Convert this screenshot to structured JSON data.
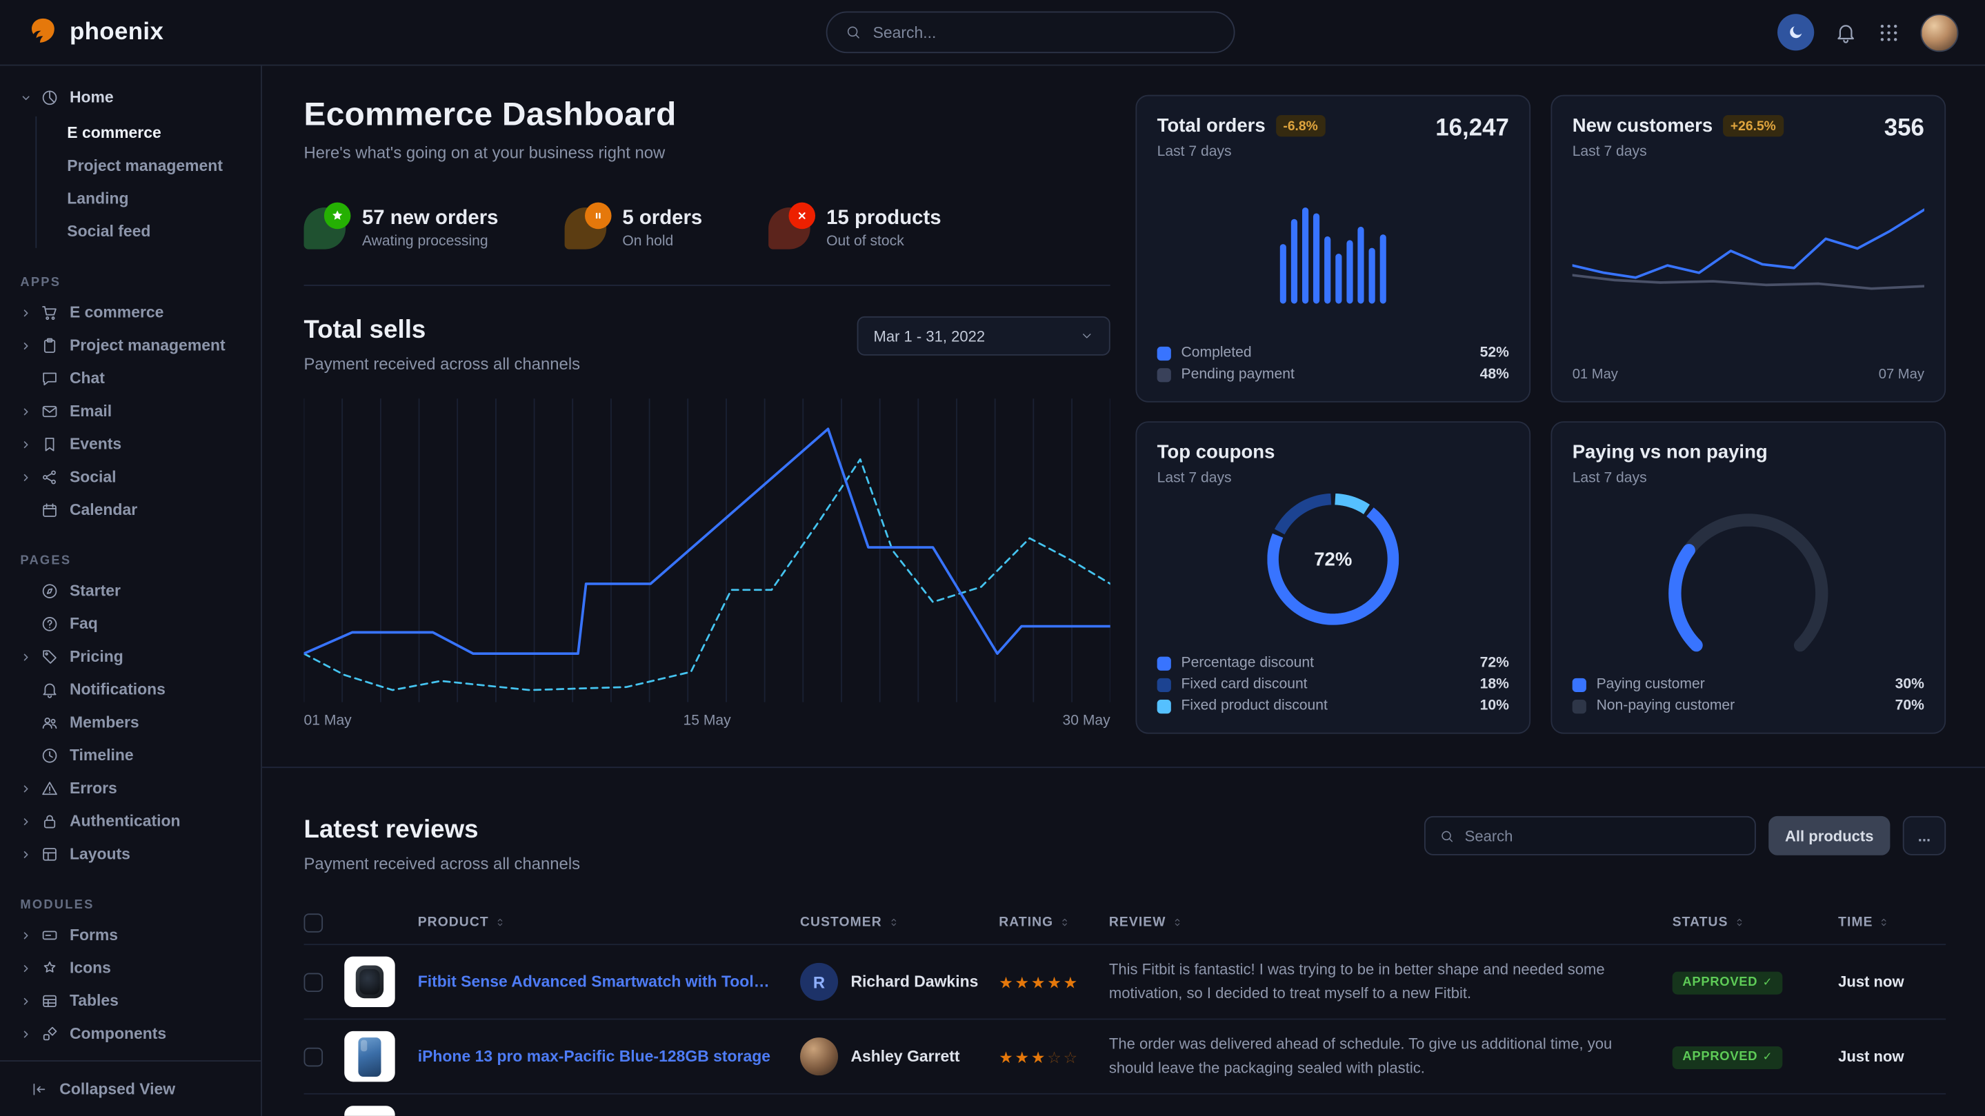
{
  "navbar": {
    "brand": "phoenix",
    "search_placeholder": "Search..."
  },
  "sidebar": {
    "home": {
      "label": "Home",
      "icon": "pie",
      "children": [
        {
          "label": "E commerce",
          "active": true
        },
        {
          "label": "Project management",
          "active": false
        },
        {
          "label": "Landing",
          "active": false
        },
        {
          "label": "Social feed",
          "active": false
        }
      ]
    },
    "sections": [
      {
        "label": "APPS",
        "items": [
          {
            "label": "E commerce",
            "icon": "cart",
            "caret": true
          },
          {
            "label": "Project management",
            "icon": "clipboard",
            "caret": true
          },
          {
            "label": "Chat",
            "icon": "chat",
            "caret": false
          },
          {
            "label": "Email",
            "icon": "mail",
            "caret": true
          },
          {
            "label": "Events",
            "icon": "bookmark",
            "caret": true
          },
          {
            "label": "Social",
            "icon": "share",
            "caret": true
          },
          {
            "label": "Calendar",
            "icon": "calendar",
            "caret": false
          }
        ]
      },
      {
        "label": "PAGES",
        "items": [
          {
            "label": "Starter",
            "icon": "compass",
            "caret": false
          },
          {
            "label": "Faq",
            "icon": "question",
            "caret": false
          },
          {
            "label": "Pricing",
            "icon": "tag",
            "caret": true
          },
          {
            "label": "Notifications",
            "icon": "bell",
            "caret": false
          },
          {
            "label": "Members",
            "icon": "users",
            "caret": false
          },
          {
            "label": "Timeline",
            "icon": "clock",
            "caret": false
          },
          {
            "label": "Errors",
            "icon": "warning",
            "caret": true
          },
          {
            "label": "Authentication",
            "icon": "lock",
            "caret": true
          },
          {
            "label": "Layouts",
            "icon": "layout",
            "caret": true
          }
        ]
      },
      {
        "label": "MODULES",
        "items": [
          {
            "label": "Forms",
            "icon": "forms",
            "caret": true
          },
          {
            "label": "Icons",
            "icon": "icons",
            "caret": true
          },
          {
            "label": "Tables",
            "icon": "table",
            "caret": true
          },
          {
            "label": "Components",
            "icon": "components",
            "caret": true
          }
        ]
      }
    ],
    "collapsed_view": "Collapsed View"
  },
  "header": {
    "title": "Ecommerce Dashboard",
    "subtitle": "Here's what's going on at your business right now"
  },
  "stats": [
    {
      "value": "57 new orders",
      "caption": "Awating processing",
      "icon": "star",
      "theme": "success"
    },
    {
      "value": "5 orders",
      "caption": "On hold",
      "icon": "pause",
      "theme": "warning"
    },
    {
      "value": "15 products",
      "caption": "Out of stock",
      "icon": "x",
      "theme": "danger"
    }
  ],
  "total_sells": {
    "title": "Total sells",
    "subtitle": "Payment received across all channels",
    "date_range": "Mar 1 - 31, 2022"
  },
  "cards": {
    "total_orders": {
      "title": "Total orders",
      "badge": "-6.8%",
      "period": "Last 7 days",
      "value": "16,247",
      "legend": [
        {
          "label": "Completed",
          "value": "52%",
          "color": "#3874ff"
        },
        {
          "label": "Pending payment",
          "value": "48%",
          "color": "#39415a"
        }
      ]
    },
    "new_customers": {
      "title": "New customers",
      "badge": "+26.5%",
      "period": "Last 7 days",
      "value": "356"
    },
    "top_coupons": {
      "title": "Top coupons",
      "period": "Last 7 days",
      "legend": [
        {
          "label": "Percentage discount",
          "value": "72%",
          "color": "#3874ff"
        },
        {
          "label": "Fixed card discount",
          "value": "18%",
          "color": "#1c4391"
        },
        {
          "label": "Fixed product discount",
          "value": "10%",
          "color": "#55c0ff"
        }
      ]
    },
    "paying": {
      "title": "Paying vs non paying",
      "period": "Last 7 days",
      "legend": [
        {
          "label": "Paying customer",
          "value": "30%",
          "color": "#3874ff"
        },
        {
          "label": "Non-paying customer",
          "value": "70%",
          "color": "#2e3648"
        }
      ]
    }
  },
  "reviews": {
    "title": "Latest reviews",
    "subtitle": "Payment received across all channels",
    "search_placeholder": "Search",
    "all_products_button": "All products",
    "more_button": "...",
    "columns": [
      "PRODUCT",
      "CUSTOMER",
      "RATING",
      "REVIEW",
      "STATUS",
      "TIME"
    ],
    "rows": [
      {
        "product": "Fitbit Sense Advanced Smartwatch with Tools fo...",
        "customer": "Richard Dawkins",
        "avatar_type": "initial",
        "avatar_initial": "R",
        "rating": 5,
        "review": "This Fitbit is fantastic! I was trying to be in better shape and needed some motivation, so I decided to treat myself to a new Fitbit.",
        "status": "APPROVED",
        "time": "Just now",
        "thumb": "watch"
      },
      {
        "product": "iPhone 13 pro max-Pacific Blue-128GB storage",
        "customer": "Ashley Garrett",
        "avatar_type": "photo",
        "avatar_initial": "",
        "rating": 3,
        "review": "The order was delivered ahead of schedule. To give us additional time, you should leave the packaging sealed with plastic.",
        "status": "APPROVED",
        "time": "Just now",
        "thumb": "iphone"
      },
      {
        "product": "",
        "customer": "",
        "avatar_type": "none",
        "avatar_initial": "",
        "rating": 0,
        "review": "",
        "status": "",
        "time": "",
        "thumb": "generic"
      }
    ]
  },
  "chart_data": [
    {
      "id": "total-sells",
      "type": "line",
      "x_labels": [
        "01 May",
        "15 May",
        "30 May"
      ],
      "ylim": [
        0,
        100
      ],
      "series": [
        {
          "name": "current period",
          "style": "solid",
          "color": "#3874ff",
          "points": [
            [
              0,
              16
            ],
            [
              6,
              23
            ],
            [
              16,
              23
            ],
            [
              21,
              16
            ],
            [
              34,
              16
            ],
            [
              35,
              39
            ],
            [
              43,
              39
            ],
            [
              65,
              90
            ],
            [
              70,
              51
            ],
            [
              78,
              51
            ],
            [
              86,
              16
            ],
            [
              89,
              25
            ],
            [
              100,
              25
            ]
          ]
        },
        {
          "name": "previous period",
          "style": "dashed",
          "color": "#45c4f0",
          "points": [
            [
              0,
              16
            ],
            [
              5,
              9
            ],
            [
              11,
              4
            ],
            [
              17,
              7
            ],
            [
              28,
              4
            ],
            [
              40,
              5
            ],
            [
              48,
              10
            ],
            [
              53,
              37
            ],
            [
              58,
              37
            ],
            [
              64,
              60
            ],
            [
              69,
              80
            ],
            [
              73,
              50
            ],
            [
              78,
              33
            ],
            [
              84,
              38
            ],
            [
              90,
              54
            ],
            [
              95,
              47
            ],
            [
              100,
              39
            ]
          ]
        }
      ]
    },
    {
      "id": "total-orders-bars",
      "type": "bar",
      "color": "#3874ff",
      "values": [
        62,
        88,
        100,
        94,
        70,
        52,
        66,
        80,
        58,
        72
      ]
    },
    {
      "id": "new-customers",
      "type": "line",
      "x_labels": [
        "01 May",
        "07 May"
      ],
      "series": [
        {
          "name": "customers",
          "style": "solid",
          "color": "#3874ff",
          "points": [
            [
              0,
              46
            ],
            [
              9,
              40
            ],
            [
              18,
              36
            ],
            [
              27,
              46
            ],
            [
              36,
              40
            ],
            [
              45,
              58
            ],
            [
              54,
              47
            ],
            [
              63,
              44
            ],
            [
              72,
              68
            ],
            [
              81,
              60
            ],
            [
              90,
              74
            ],
            [
              100,
              92
            ]
          ]
        },
        {
          "name": "baseline",
          "style": "solid",
          "color": "#4a5168",
          "points": [
            [
              0,
              38
            ],
            [
              12,
              34
            ],
            [
              25,
              32
            ],
            [
              40,
              33
            ],
            [
              55,
              30
            ],
            [
              70,
              31
            ],
            [
              85,
              27
            ],
            [
              100,
              29
            ]
          ]
        }
      ]
    },
    {
      "id": "top-coupons",
      "type": "donut",
      "center_label": "72%",
      "start_angle": 36,
      "segments": [
        {
          "label": "Percentage discount",
          "value": 72,
          "color": "#3874ff"
        },
        {
          "label": "Fixed card discount",
          "value": 18,
          "color": "#1c4391"
        },
        {
          "label": "Fixed product discount",
          "value": 10,
          "color": "#55c0ff"
        }
      ]
    },
    {
      "id": "paying-gauge",
      "type": "gauge",
      "value": 30,
      "color": "#3874ff",
      "track": "#272f40",
      "segments": [
        {
          "label": "Paying customer",
          "value": 30
        },
        {
          "label": "Non-paying customer",
          "value": 70
        }
      ]
    }
  ]
}
